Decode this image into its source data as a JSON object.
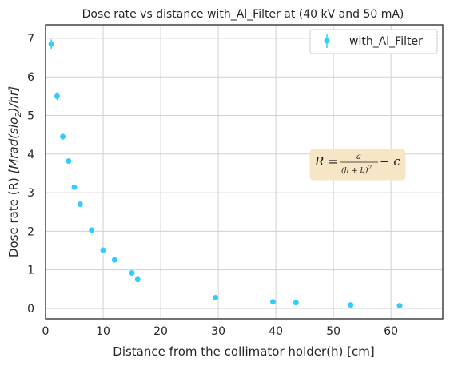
{
  "chart_data": {
    "type": "scatter",
    "title": "Dose rate vs distance with_Al_Filter at  (40 kV and 50 mA)",
    "xlabel": "Distance from the collimator holder(h) [cm]",
    "ylabel_plain": "Dose rate (R) ",
    "ylabel_math": "[Mrad(sio",
    "ylabel_sub": "2",
    "ylabel_tail": ")/hr]",
    "xlim": [
      0,
      69
    ],
    "ylim": [
      -0.27,
      7.35
    ],
    "xticks": [
      0,
      10,
      20,
      30,
      40,
      50,
      60
    ],
    "yticks": [
      0,
      1,
      2,
      3,
      4,
      5,
      6,
      7
    ],
    "grid": true,
    "legend_position": "top-right",
    "series": [
      {
        "name": "with_Al_Filter",
        "color": "#33ccff",
        "x": [
          1,
          2,
          3,
          4,
          5,
          6,
          8,
          10,
          12,
          15,
          16,
          29.5,
          39.5,
          43.5,
          53,
          61.5
        ],
        "y": [
          6.85,
          5.5,
          4.45,
          3.82,
          3.14,
          2.7,
          2.03,
          1.51,
          1.26,
          0.92,
          0.75,
          0.28,
          0.17,
          0.15,
          0.09,
          0.07
        ],
        "yerr": [
          0.12,
          0.1,
          0.08,
          0.06,
          0.05,
          0.04,
          0.03,
          0.03,
          0.02,
          0.02,
          0.02,
          0.01,
          0.01,
          0.01,
          0.01,
          0.01
        ]
      }
    ],
    "annotation": {
      "lhs": "R =",
      "numerator": "a",
      "denominator": "(h + b)",
      "denominator_exp": "2",
      "tail": "− c",
      "box_color": "#f6e6c6"
    }
  }
}
